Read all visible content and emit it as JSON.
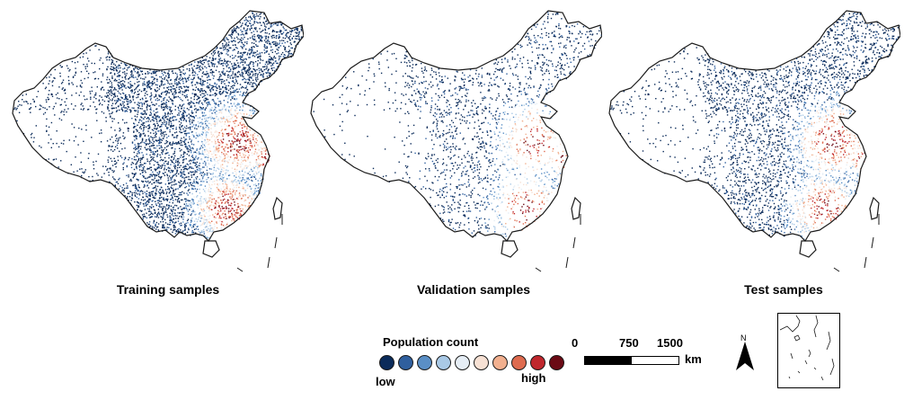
{
  "panels": [
    {
      "title": "Training samples",
      "density": 1.0
    },
    {
      "title": "Validation samples",
      "density": 0.35
    },
    {
      "title": "Test samples",
      "density": 0.6
    }
  ],
  "legend": {
    "title": "Population count",
    "low_label": "low",
    "high_label": "high",
    "colors": [
      "#0b2b5a",
      "#2f5f9e",
      "#5a8fc6",
      "#a9c9e6",
      "#e6eef6",
      "#f7e1d4",
      "#f2b08f",
      "#de6b4f",
      "#c0272d",
      "#6b0a15"
    ]
  },
  "scale": {
    "ticks": [
      "0",
      "750",
      "1500"
    ],
    "unit": "km"
  },
  "north_label": "N",
  "colors": {
    "outline": "#1a1a1a",
    "land": "#ffffff"
  }
}
